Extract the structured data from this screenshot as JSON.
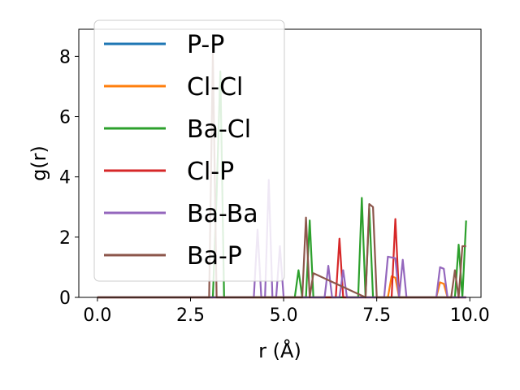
{
  "chart_data": {
    "type": "line",
    "xlabel": "r (Å)",
    "ylabel": "g(r)",
    "xlim": [
      -0.5,
      10.3
    ],
    "ylim": [
      0,
      8.9
    ],
    "xticks": [
      0.0,
      2.5,
      5.0,
      7.5,
      10.0
    ],
    "xtick_labels": [
      "0.0",
      "2.5",
      "5.0",
      "7.5",
      "10.0"
    ],
    "yticks": [
      0,
      2,
      4,
      6,
      8
    ],
    "ytick_labels": [
      "0",
      "2",
      "4",
      "6",
      "8"
    ],
    "legend_position": "top-left",
    "series": [
      {
        "name": "P-P",
        "color": "#1f77b4",
        "x": [
          0.0,
          9.9
        ],
        "y": [
          0,
          0
        ]
      },
      {
        "name": "Cl-Cl",
        "color": "#ff7f0e",
        "x": [
          0.0,
          7.8,
          7.9,
          8.0,
          8.1,
          9.1,
          9.2,
          9.3,
          9.4,
          9.9
        ],
        "y": [
          0,
          0,
          0.7,
          0.65,
          0,
          0,
          0.5,
          0.45,
          0,
          0
        ]
      },
      {
        "name": "Ba-Cl",
        "color": "#2ca02c",
        "x": [
          0.0,
          3.1,
          3.2,
          3.3,
          3.4,
          5.3,
          5.4,
          5.5,
          5.6,
          5.7,
          5.8,
          7.0,
          7.1,
          7.2,
          7.3,
          7.4,
          7.5,
          9.6,
          9.7,
          9.8,
          9.9
        ],
        "y": [
          0,
          0,
          3.4,
          7.5,
          0,
          0,
          0.9,
          0,
          0,
          2.55,
          0,
          0,
          3.3,
          0,
          2.95,
          0,
          0,
          0,
          1.75,
          0,
          2.55
        ]
      },
      {
        "name": "Cl-P",
        "color": "#d62728",
        "x": [
          0.0,
          6.4,
          6.5,
          6.6,
          7.9,
          8.0,
          8.1,
          9.9
        ],
        "y": [
          0,
          0,
          1.95,
          0,
          0,
          2.6,
          0,
          0
        ]
      },
      {
        "name": "Ba-Ba",
        "color": "#9467bd",
        "x": [
          0.0,
          4.2,
          4.3,
          4.4,
          4.5,
          4.6,
          4.7,
          4.8,
          4.9,
          5.0,
          6.1,
          6.2,
          6.3,
          6.5,
          6.6,
          6.7,
          7.7,
          7.8,
          8.0,
          8.1,
          8.2,
          8.3,
          9.1,
          9.2,
          9.3,
          9.4,
          9.9
        ],
        "y": [
          0,
          0,
          2.25,
          0,
          0,
          3.9,
          0,
          0,
          1.7,
          0,
          0,
          1.05,
          0,
          0,
          0.9,
          0,
          0,
          1.35,
          1.3,
          0,
          1.25,
          0,
          0,
          1.0,
          0.95,
          0,
          0
        ]
      },
      {
        "name": "Ba-P",
        "color": "#8c564b",
        "x": [
          0.0,
          3.0,
          3.1,
          3.2,
          5.4,
          5.5,
          5.6,
          5.7,
          5.8,
          7.2,
          7.3,
          7.4,
          7.5,
          9.5,
          9.6,
          9.7,
          9.8,
          9.9
        ],
        "y": [
          0,
          0,
          8.1,
          0,
          0,
          0,
          2.65,
          0,
          0.8,
          0,
          3.1,
          3.0,
          0,
          0,
          0.9,
          0,
          1.7,
          1.7
        ]
      }
    ]
  }
}
